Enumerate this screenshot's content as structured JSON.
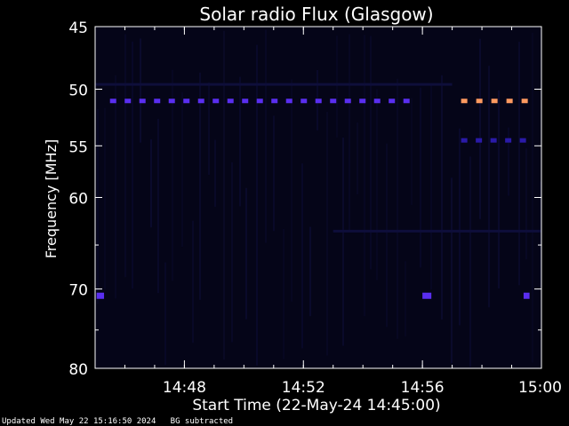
{
  "chart_data": {
    "type": "heatmap",
    "title": "Solar radio Flux (Glasgow)",
    "xlabel": "Start Time (22-May-24 14:45:00)",
    "ylabel": "Frequency [MHz]",
    "xlim_minutes": [
      0,
      15
    ],
    "ylim_mhz": [
      45,
      80
    ],
    "y_scale": "log",
    "x_ticks": [
      {
        "minute": 3,
        "label": "14:48"
      },
      {
        "minute": 7,
        "label": "14:52"
      },
      {
        "minute": 11,
        "label": "14:56"
      },
      {
        "minute": 15,
        "label": "15:00"
      }
    ],
    "y_ticks": [
      {
        "mhz": 45,
        "label": "45"
      },
      {
        "mhz": 50,
        "label": "50"
      },
      {
        "mhz": 55,
        "label": "55"
      },
      {
        "mhz": 60,
        "label": "60"
      },
      {
        "mhz": 70,
        "label": "70"
      },
      {
        "mhz": 80,
        "label": "80"
      }
    ],
    "y_minor_ticks_mhz": [
      65,
      75
    ],
    "intensity_colors": {
      "background": "#050518",
      "low": "#0e0e3a",
      "mid": "#2a1aa8",
      "high": "#5a2ef0",
      "peak": "#ff9a60"
    },
    "features": [
      {
        "name": "interference-band-51mhz",
        "freq_mhz": 51.0,
        "start_min": 0.5,
        "end_min": 10.5,
        "intensity": "high"
      },
      {
        "name": "interference-band-49mhz",
        "freq_mhz": 49.6,
        "start_min": 0.0,
        "end_min": 12.0,
        "intensity": "low"
      },
      {
        "name": "bright-band-51mhz",
        "freq_mhz": 51.0,
        "start_min": 12.3,
        "end_min": 14.7,
        "intensity": "peak"
      },
      {
        "name": "band-54.5mhz",
        "freq_mhz": 54.5,
        "start_min": 12.3,
        "end_min": 14.7,
        "intensity": "mid"
      },
      {
        "name": "spot-70.8mhz-a",
        "freq_mhz": 70.8,
        "start_min": 0.05,
        "end_min": 0.3,
        "intensity": "high"
      },
      {
        "name": "spot-70.8mhz-b",
        "freq_mhz": 70.8,
        "start_min": 11.0,
        "end_min": 11.3,
        "intensity": "high"
      },
      {
        "name": "spot-70.8mhz-c",
        "freq_mhz": 70.8,
        "start_min": 14.4,
        "end_min": 14.6,
        "intensity": "high"
      },
      {
        "name": "faint-band-63mhz",
        "freq_mhz": 63.5,
        "start_min": 8.0,
        "end_min": 15.0,
        "intensity": "low"
      }
    ]
  },
  "footer": {
    "updated": "Updated Wed May 22 15:16:50 2024",
    "note": "BG subtracted"
  }
}
